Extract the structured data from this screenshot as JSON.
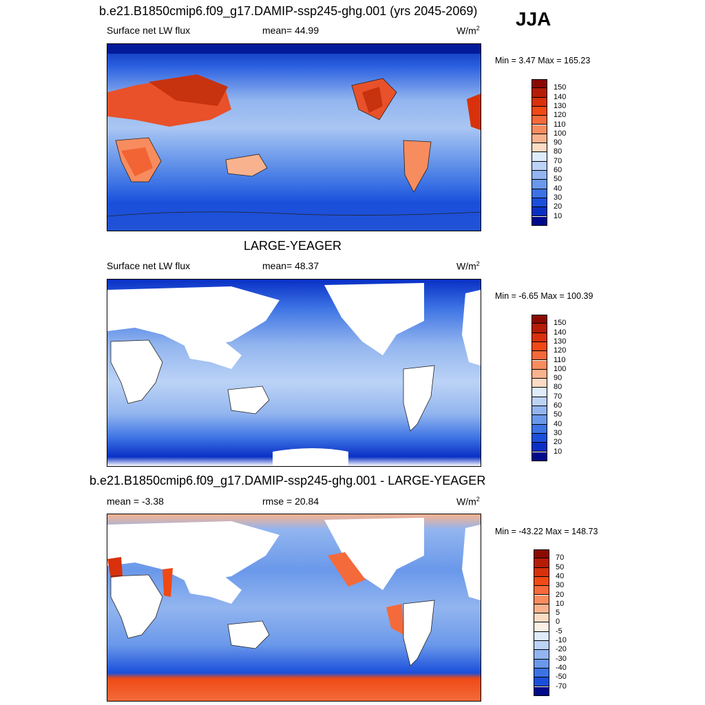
{
  "season": "JJA",
  "panels": [
    {
      "title": "b.e21.B1850cmip6.f09_g17.DAMIP-ssp245-ghg.001 (yrs 2045-2069)",
      "left_label": "Surface net LW flux",
      "center_label": "mean=  44.99",
      "units_base": "W/m",
      "units_exp": "2",
      "minmax": "Min =   3.47 Max = 165.23",
      "land": "filled",
      "colorbar": {
        "labels": [
          "150",
          "140",
          "130",
          "120",
          "110",
          "100",
          "90",
          "80",
          "70",
          "60",
          "50",
          "40",
          "30",
          "20",
          "10"
        ],
        "colors": [
          "#8b0a00",
          "#b51c05",
          "#d8310b",
          "#ef4a16",
          "#f46a3a",
          "#f78c5f",
          "#f9b28e",
          "#fcdcc4",
          "#deebfa",
          "#bcd3f6",
          "#92b5ef",
          "#6a98ea",
          "#3c72e4",
          "#1a4fdb",
          "#0930c5",
          "#010a8a"
        ]
      }
    },
    {
      "title": "LARGE-YEAGER",
      "left_label": "Surface net LW flux",
      "center_label": "mean=  48.37",
      "units_base": "W/m",
      "units_exp": "2",
      "minmax": "Min =  -6.65 Max = 100.39",
      "land": "masked",
      "colorbar": {
        "labels": [
          "150",
          "140",
          "130",
          "120",
          "110",
          "100",
          "90",
          "80",
          "70",
          "60",
          "50",
          "40",
          "30",
          "20",
          "10"
        ],
        "colors": [
          "#8b0a00",
          "#b51c05",
          "#d8310b",
          "#ef4a16",
          "#f46a3a",
          "#f78c5f",
          "#f9b28e",
          "#fcdcc4",
          "#deebfa",
          "#bcd3f6",
          "#92b5ef",
          "#6a98ea",
          "#3c72e4",
          "#1a4fdb",
          "#0930c5",
          "#010a8a"
        ]
      }
    },
    {
      "title": "b.e21.B1850cmip6.f09_g17.DAMIP-ssp245-ghg.001 - LARGE-YEAGER",
      "left_label": "mean =  -3.38",
      "center_label": "rmse =  20.84",
      "units_base": "W/m",
      "units_exp": "2",
      "minmax": "Min = -43.22 Max = 148.73",
      "land": "masked",
      "colorbar": {
        "labels": [
          "70",
          "50",
          "40",
          "30",
          "20",
          "10",
          "5",
          "0",
          "-5",
          "-10",
          "-20",
          "-30",
          "-40",
          "-50",
          "-70"
        ],
        "colors": [
          "#8b0a00",
          "#b51c05",
          "#d8310b",
          "#ef4a16",
          "#f46a3a",
          "#f78c5f",
          "#f9b28e",
          "#fcdcc4",
          "#fbf0e6",
          "#deebfa",
          "#bcd3f6",
          "#92b5ef",
          "#6a98ea",
          "#3c72e4",
          "#1a4fdb",
          "#010a8a"
        ]
      }
    }
  ]
}
